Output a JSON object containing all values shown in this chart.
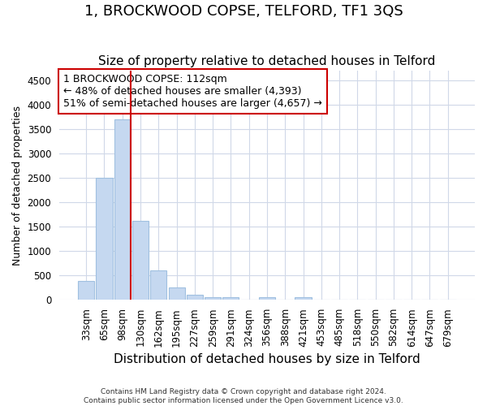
{
  "title": "1, BROCKWOOD COPSE, TELFORD, TF1 3QS",
  "subtitle": "Size of property relative to detached houses in Telford",
  "xlabel": "Distribution of detached houses by size in Telford",
  "ylabel": "Number of detached properties",
  "footer_line1": "Contains HM Land Registry data © Crown copyright and database right 2024.",
  "footer_line2": "Contains public sector information licensed under the Open Government Licence v3.0.",
  "categories": [
    "33sqm",
    "65sqm",
    "98sqm",
    "130sqm",
    "162sqm",
    "195sqm",
    "227sqm",
    "259sqm",
    "291sqm",
    "324sqm",
    "356sqm",
    "388sqm",
    "421sqm",
    "453sqm",
    "485sqm",
    "518sqm",
    "550sqm",
    "582sqm",
    "614sqm",
    "647sqm",
    "679sqm"
  ],
  "values": [
    380,
    2500,
    3700,
    1620,
    600,
    250,
    100,
    60,
    50,
    0,
    50,
    0,
    50,
    0,
    0,
    0,
    0,
    0,
    0,
    0,
    0
  ],
  "bar_color": "#c5d8f0",
  "bar_edge_color": "#a0c0e0",
  "red_line_index": 2,
  "red_line_color": "#cc0000",
  "annotation_text": "1 BROCKWOOD COPSE: 112sqm\n← 48% of detached houses are smaller (4,393)\n51% of semi-detached houses are larger (4,657) →",
  "annotation_box_facecolor": "#ffffff",
  "annotation_box_edgecolor": "#cc0000",
  "ylim": [
    0,
    4700
  ],
  "yticks": [
    0,
    500,
    1000,
    1500,
    2000,
    2500,
    3000,
    3500,
    4000,
    4500
  ],
  "background_color": "#ffffff",
  "plot_bg_color": "#ffffff",
  "grid_color": "#d0d8e8",
  "title_fontsize": 13,
  "subtitle_fontsize": 11,
  "xlabel_fontsize": 11,
  "ylabel_fontsize": 9,
  "tick_fontsize": 8.5,
  "annotation_fontsize": 9
}
